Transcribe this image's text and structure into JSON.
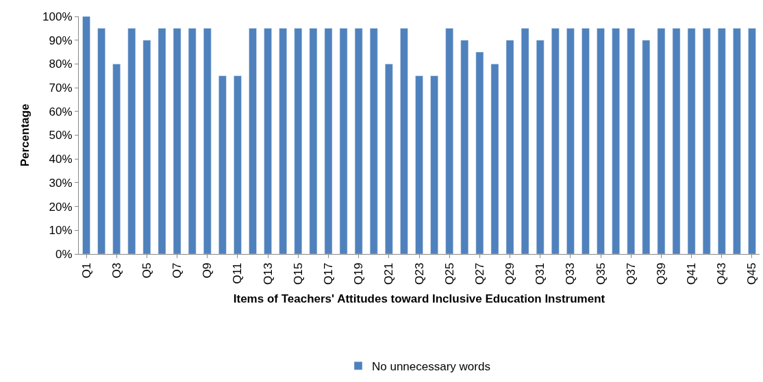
{
  "chart_data": {
    "type": "bar",
    "xlabel": "Items of Teachers' Attitudes toward Inclusive Education Instrument",
    "ylabel": "Percentage",
    "categories": [
      "Q1",
      null,
      "Q3",
      null,
      "Q5",
      null,
      "Q7",
      null,
      "Q9",
      null,
      "Q11",
      null,
      "Q13",
      null,
      "Q15",
      null,
      "Q17",
      null,
      "Q19",
      null,
      "Q21",
      null,
      "Q23",
      null,
      "Q25",
      null,
      "Q27",
      null,
      "Q29",
      null,
      "Q31",
      null,
      "Q33",
      null,
      "Q35",
      null,
      "Q37",
      null,
      "Q39",
      null,
      "Q41",
      null,
      "Q43",
      null,
      "Q45"
    ],
    "series": [
      {
        "name": "No unnecessary words",
        "color": "#4f81bd",
        "values": [
          100,
          95,
          80,
          95,
          90,
          95,
          95,
          95,
          95,
          75,
          75,
          95,
          95,
          95,
          95,
          95,
          95,
          95,
          95,
          95,
          80,
          95,
          75,
          75,
          95,
          90,
          85,
          80,
          90,
          95,
          90,
          95,
          95,
          95,
          95,
          95,
          95,
          90,
          95,
          95,
          95,
          95,
          95,
          95,
          95
        ]
      }
    ],
    "ylim": [
      0,
      100
    ],
    "yticks": [
      {
        "value": 0,
        "label": "0%"
      },
      {
        "value": 10,
        "label": "10%"
      },
      {
        "value": 20,
        "label": "20%"
      },
      {
        "value": 30,
        "label": "30%"
      },
      {
        "value": 40,
        "label": "40%"
      },
      {
        "value": 50,
        "label": "50%"
      },
      {
        "value": 60,
        "label": "60%"
      },
      {
        "value": 70,
        "label": "70%"
      },
      {
        "value": 80,
        "label": "80%"
      },
      {
        "value": 90,
        "label": "90%"
      },
      {
        "value": 100,
        "label": "100%"
      }
    ],
    "legend": "bottom"
  }
}
